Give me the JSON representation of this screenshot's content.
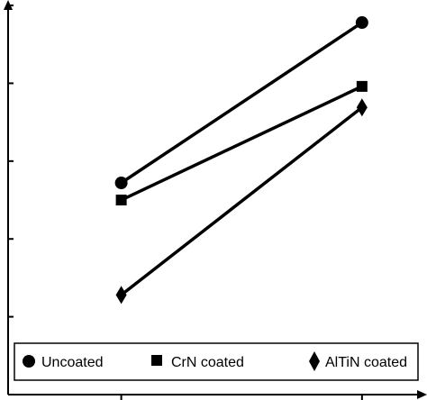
{
  "chart_data": {
    "type": "line",
    "title": "",
    "xlabel": "",
    "ylabel": "",
    "x": [
      1,
      2
    ],
    "xlim": [
      0.53,
      2.27
    ],
    "ylim": [
      0,
      5.07
    ],
    "grid": false,
    "legend_position": "bottom",
    "series": [
      {
        "name": "Uncoated",
        "marker": "circle",
        "values": [
          2.72,
          4.78
        ]
      },
      {
        "name": "CrN coated",
        "marker": "square",
        "values": [
          2.5,
          3.96
        ]
      },
      {
        "name": "AlTiN coated",
        "marker": "diamond",
        "values": [
          1.28,
          3.69
        ]
      }
    ]
  },
  "colors": {
    "line": "#000000",
    "background": "#ffffff"
  }
}
